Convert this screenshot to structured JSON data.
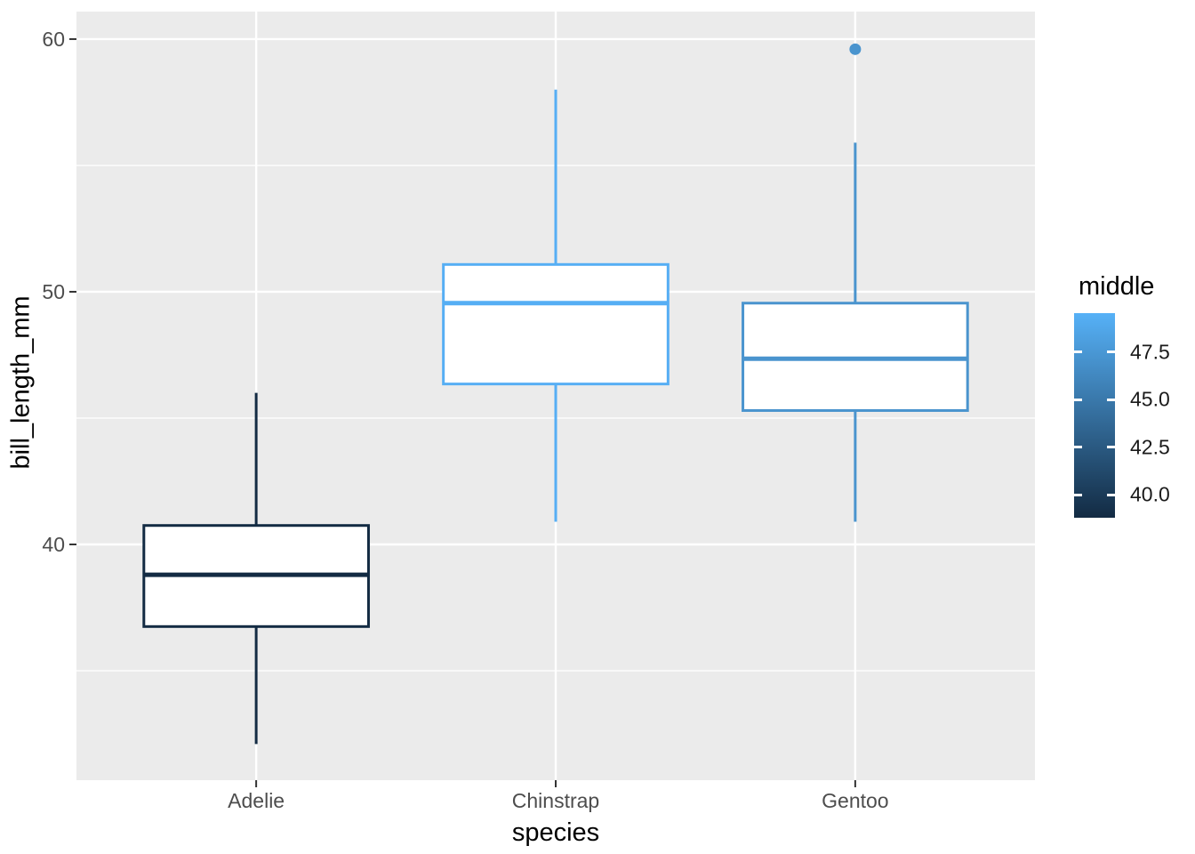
{
  "figure": {
    "background": "#FFFFFF",
    "panel_bg": "#EBEBEB",
    "grid_color": "#FFFFFF",
    "tick_mark_color": "#333333",
    "tick_label_color": "#4D4D4D",
    "axis_title_color": "#000000"
  },
  "chart_data": {
    "type": "boxplot",
    "title": "",
    "xlabel": "species",
    "ylabel": "bill_length_mm",
    "categories": [
      "Adelie",
      "Chinstrap",
      "Gentoo"
    ],
    "y_axis": {
      "range": [
        30.67,
        61.09
      ],
      "major_ticks": [
        {
          "label": "40",
          "value": 40
        },
        {
          "label": "50",
          "value": 50
        },
        {
          "label": "60",
          "value": 60
        }
      ],
      "minor_ticks": [
        35,
        45,
        55
      ]
    },
    "series": [
      {
        "category": "Adelie",
        "min": 32.1,
        "q1": 36.75,
        "median": 38.8,
        "q3": 40.75,
        "max": 46.0,
        "outliers": [],
        "color": "#132B43"
      },
      {
        "category": "Chinstrap",
        "min": 40.9,
        "q1": 46.35,
        "median": 49.55,
        "q3": 51.08,
        "max": 58.0,
        "outliers": [],
        "color": "#56AEF4"
      },
      {
        "category": "Gentoo",
        "min": 40.9,
        "q1": 45.3,
        "median": 47.35,
        "q3": 49.55,
        "max": 55.9,
        "outliers": [
          59.6
        ],
        "color": "#4A94CE"
      }
    ],
    "box_fill": "#FFFFFF",
    "legend": {
      "position": "right",
      "title": "middle",
      "limits": [
        38.8,
        49.55
      ],
      "gradient_low": "#132B43",
      "gradient_high": "#56B1F7",
      "ticks": [
        {
          "label": "47.5",
          "value": 47.5
        },
        {
          "label": "45.0",
          "value": 45.0
        },
        {
          "label": "42.5",
          "value": 42.5
        },
        {
          "label": "40.0",
          "value": 40.0
        }
      ]
    }
  }
}
